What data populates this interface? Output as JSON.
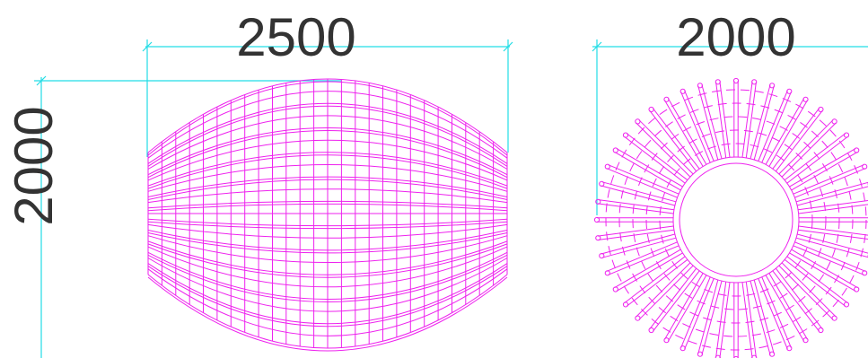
{
  "colors": {
    "background": "#ffffff",
    "dimension_line": "#22dde6",
    "geometry": "#ee22ee",
    "text": "#333333"
  },
  "elevation_view": {
    "width_label": "2500",
    "height_label": "2000"
  },
  "plan_view": {
    "diameter_label": "2000",
    "rib_count": 48
  }
}
